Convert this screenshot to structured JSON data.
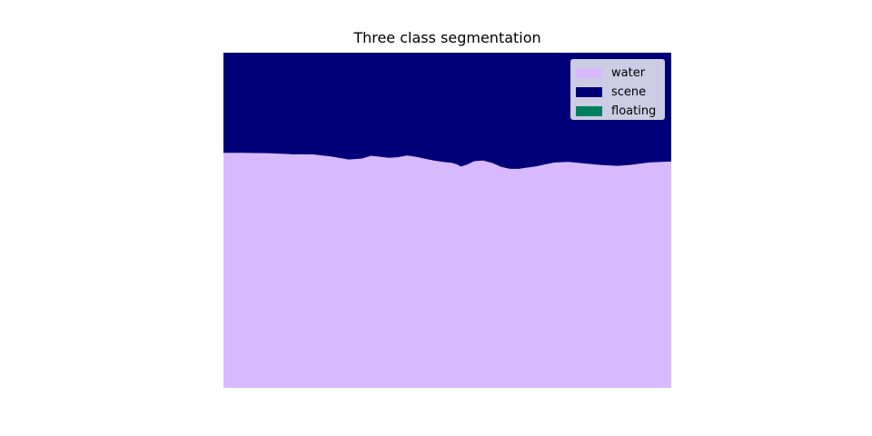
{
  "chart_data": {
    "type": "heatmap",
    "title": "Three class segmentation",
    "xlabel": "",
    "ylabel": "",
    "axes_visible": false,
    "grid": false,
    "legend_position": "top-right",
    "classes": [
      {
        "name": "water",
        "color": "#d8b9ff"
      },
      {
        "name": "scene",
        "color": "#000079"
      },
      {
        "name": "floating",
        "color": "#007f5f"
      }
    ],
    "regions": [
      {
        "class": "scene",
        "location": "top"
      },
      {
        "class": "water",
        "location": "bottom"
      }
    ],
    "boundary_fraction_from_top": [
      [
        0.0,
        0.3
      ],
      [
        0.04,
        0.3
      ],
      [
        0.1,
        0.301
      ],
      [
        0.15,
        0.304
      ],
      [
        0.2,
        0.305
      ],
      [
        0.24,
        0.311
      ],
      [
        0.28,
        0.32
      ],
      [
        0.31,
        0.317
      ],
      [
        0.33,
        0.309
      ],
      [
        0.35,
        0.312
      ],
      [
        0.37,
        0.315
      ],
      [
        0.39,
        0.313
      ],
      [
        0.41,
        0.308
      ],
      [
        0.43,
        0.312
      ],
      [
        0.45,
        0.318
      ],
      [
        0.47,
        0.323
      ],
      [
        0.49,
        0.327
      ],
      [
        0.51,
        0.33
      ],
      [
        0.52,
        0.334
      ],
      [
        0.53,
        0.341
      ],
      [
        0.545,
        0.335
      ],
      [
        0.56,
        0.325
      ],
      [
        0.58,
        0.323
      ],
      [
        0.6,
        0.33
      ],
      [
        0.62,
        0.342
      ],
      [
        0.64,
        0.348
      ],
      [
        0.66,
        0.348
      ],
      [
        0.68,
        0.344
      ],
      [
        0.7,
        0.34
      ],
      [
        0.72,
        0.334
      ],
      [
        0.74,
        0.329
      ],
      [
        0.77,
        0.327
      ],
      [
        0.8,
        0.331
      ],
      [
        0.84,
        0.336
      ],
      [
        0.88,
        0.339
      ],
      [
        0.91,
        0.336
      ],
      [
        0.95,
        0.329
      ],
      [
        1.0,
        0.326
      ]
    ]
  }
}
